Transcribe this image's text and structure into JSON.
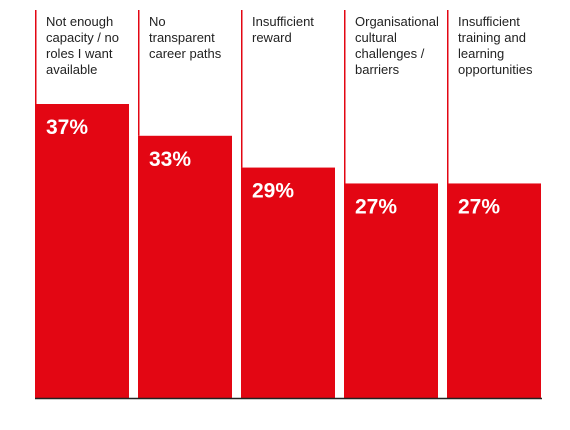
{
  "chart_data": {
    "type": "bar",
    "categories": [
      "Not enough capacity / no roles I want available",
      "No transparent career paths",
      "Insufficient reward",
      "Organisational cultural challenges / barriers",
      "Insufficient training and learning opportunities"
    ],
    "category_lines": [
      [
        "Not enough",
        "capacity / no",
        "roles I want",
        "available"
      ],
      [
        "No",
        "transparent",
        "career paths"
      ],
      [
        "Insufficient",
        "reward"
      ],
      [
        "Organisational",
        "cultural",
        "challenges /",
        "barriers"
      ],
      [
        "Insufficient",
        "training and",
        "learning",
        "opportunities"
      ]
    ],
    "values": [
      37,
      33,
      29,
      27,
      27
    ],
    "value_labels": [
      "37%",
      "33%",
      "29%",
      "27%",
      "27%"
    ],
    "ylim": [
      0,
      37
    ],
    "colors": {
      "bar": "#e30613",
      "value_text": "#ffffff",
      "axis": "#222222",
      "label_text": "#222222"
    },
    "grid": false,
    "legend": "none"
  }
}
